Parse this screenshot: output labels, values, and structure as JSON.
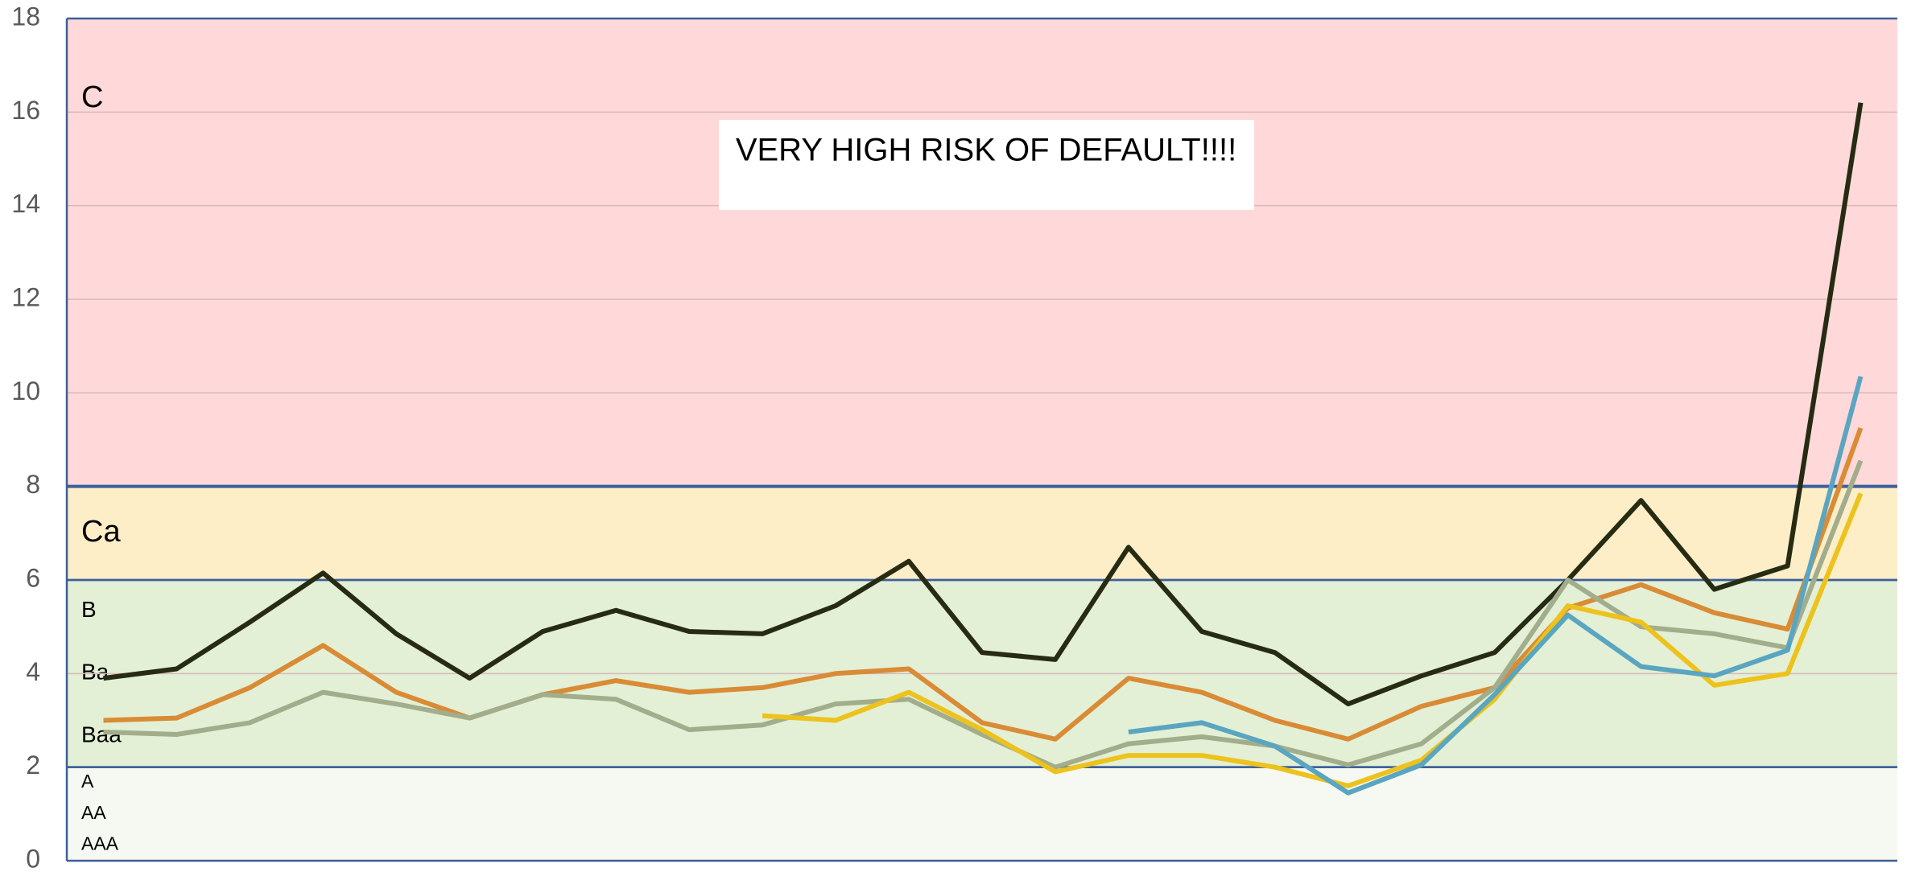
{
  "chart_data": {
    "type": "line",
    "categories": [
      null,
      null,
      null,
      null,
      null,
      null,
      null,
      null,
      null,
      null,
      null,
      null,
      null,
      null,
      null,
      null,
      null,
      null,
      null,
      null,
      null,
      null,
      null,
      null,
      null
    ],
    "ylim": [
      0,
      18
    ],
    "yticks": [
      0,
      2,
      4,
      6,
      8,
      10,
      12,
      14,
      16,
      18
    ],
    "grid": true,
    "bands": [
      {
        "from": 8,
        "to": 18,
        "color": "#ffd9d9",
        "labels": [
          "C"
        ]
      },
      {
        "from": 6,
        "to": 8,
        "color": "#fdeec8",
        "labels": [
          "Ca"
        ]
      },
      {
        "from": 2,
        "to": 6,
        "color": "#e3f0d6",
        "labels": [
          "B",
          "Ba",
          "Baa"
        ]
      },
      {
        "from": 0,
        "to": 2,
        "color": "#f6f9f1",
        "labels": [
          "A",
          "AA",
          "AAA"
        ]
      }
    ],
    "annotation": "VERY HIGH RISK OF DEFAULT!!!!",
    "series": [
      {
        "color": "#262b12",
        "values": [
          3.9,
          4.1,
          5.1,
          6.15,
          4.85,
          3.9,
          4.9,
          5.35,
          4.9,
          4.85,
          5.45,
          6.4,
          4.45,
          4.3,
          6.7,
          4.9,
          4.45,
          3.35,
          3.95,
          4.45,
          6.0,
          7.7,
          5.8,
          6.3,
          16.2
        ]
      },
      {
        "color": "#d98b35",
        "values": [
          3.0,
          3.05,
          3.7,
          4.6,
          3.6,
          3.05,
          3.55,
          3.85,
          3.6,
          3.7,
          4.0,
          4.1,
          2.95,
          2.6,
          3.9,
          3.6,
          3.0,
          2.6,
          3.3,
          3.7,
          5.4,
          5.9,
          5.3,
          4.95,
          9.25
        ]
      },
      {
        "color": "#a2ad8c",
        "values": [
          2.75,
          2.7,
          2.95,
          3.6,
          3.35,
          3.05,
          3.55,
          3.45,
          2.8,
          2.9,
          3.35,
          3.45,
          2.7,
          2.0,
          2.5,
          2.65,
          2.45,
          2.05,
          2.5,
          3.7,
          6.0,
          5.0,
          4.85,
          4.55,
          8.55
        ]
      },
      {
        "color": "#edc21c",
        "values": [
          null,
          null,
          null,
          null,
          null,
          null,
          null,
          null,
          null,
          3.1,
          3.0,
          3.6,
          2.8,
          1.9,
          2.25,
          2.25,
          2.0,
          1.6,
          2.15,
          3.45,
          5.45,
          5.1,
          3.75,
          4.0,
          7.85
        ]
      },
      {
        "color": "#5aa5c0",
        "values": [
          null,
          null,
          null,
          null,
          null,
          null,
          null,
          null,
          null,
          null,
          null,
          null,
          null,
          null,
          2.75,
          2.95,
          2.45,
          1.45,
          2.05,
          3.55,
          5.25,
          4.15,
          3.95,
          4.5,
          10.35
        ]
      }
    ]
  }
}
